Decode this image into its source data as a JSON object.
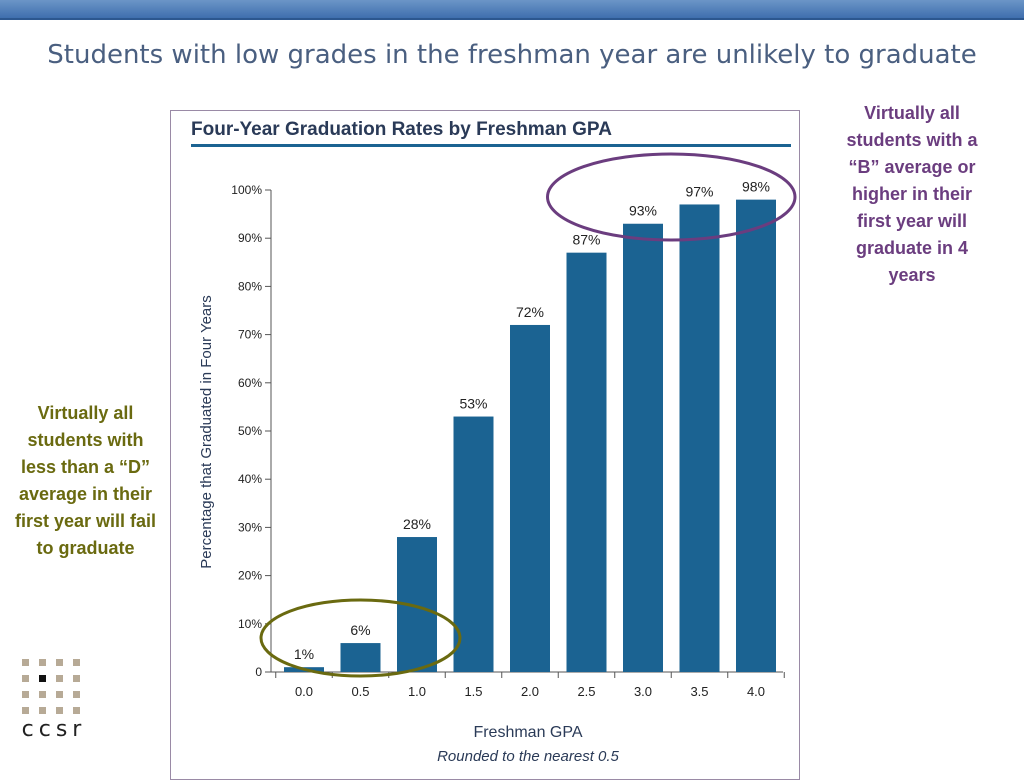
{
  "slide": {
    "title": "Students with low grades in the freshman year are unlikely to graduate"
  },
  "annotations": {
    "right": "Virtually all students with a “B” average or higher in their first year will graduate in 4 years",
    "left": "Virtually all students with less than a “D” average in their first year will fail to graduate"
  },
  "logo": {
    "text": "ccsr"
  },
  "colors": {
    "bar": "#1b6392",
    "accent_purple": "#6b3d7f",
    "accent_olive": "#6a6a10",
    "topbar": "#4f7fbd"
  },
  "chart_data": {
    "type": "bar",
    "title": "Four-Year Graduation Rates by Freshman GPA",
    "xlabel": "Freshman GPA",
    "xlabel_sub": "Rounded to the nearest 0.5",
    "ylabel": "Percentage that Graduated in Four Years",
    "categories": [
      "0.0",
      "0.5",
      "1.0",
      "1.5",
      "2.0",
      "2.5",
      "3.0",
      "3.5",
      "4.0"
    ],
    "values": [
      1,
      6,
      28,
      53,
      72,
      87,
      93,
      97,
      98
    ],
    "value_labels": [
      "1%",
      "6%",
      "28%",
      "53%",
      "72%",
      "87%",
      "93%",
      "97%",
      "98%"
    ],
    "ylim": [
      0,
      100
    ],
    "yticks": [
      0,
      10,
      20,
      30,
      40,
      50,
      60,
      70,
      80,
      90,
      100
    ],
    "ytick_labels": [
      "0",
      "10%",
      "20%",
      "30%",
      "40%",
      "50%",
      "60%",
      "70%",
      "80%",
      "90%",
      "100%"
    ],
    "grid": false,
    "legend": "none",
    "highlights": [
      {
        "name": "low-gpa-circle",
        "categories": [
          "0.0",
          "1.0"
        ],
        "color": "#6a6a10"
      },
      {
        "name": "high-gpa-circle",
        "categories": [
          "2.5",
          "4.0"
        ],
        "color": "#6b3d7f"
      }
    ]
  }
}
